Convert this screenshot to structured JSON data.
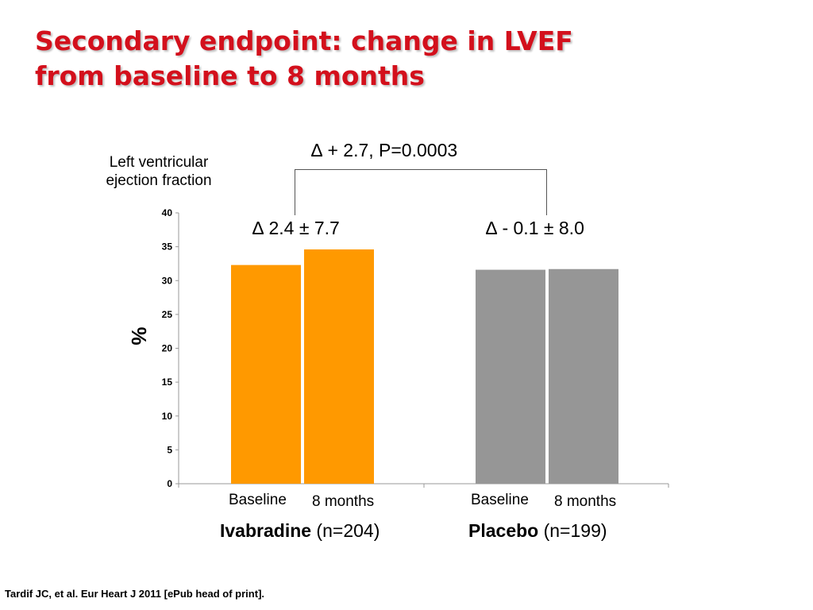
{
  "slide": {
    "title_line1": "Secondary endpoint: change in LVEF",
    "title_line2": "from baseline to 8 months",
    "footnote": "Tardif JC, et al. Eur Heart J  2011 [ePub head of print]."
  },
  "annotations": {
    "ylabel_line1": "Left ventricular",
    "ylabel_line2": "ejection fraction",
    "unit": "%",
    "delta_comparison": "∆ + 2.7,  P=0.0003",
    "delta_ivabradine": "∆ 2.4 ± 7.7",
    "delta_placebo": "∆ - 0.1 ± 8.0"
  },
  "groups": [
    {
      "name": "Ivabradine",
      "n": " (n=204)"
    },
    {
      "name": "Placebo",
      "n": " (n=199)"
    }
  ],
  "chart_data": {
    "type": "bar",
    "categories": [
      "Baseline",
      "8 months",
      "Baseline",
      "8 months"
    ],
    "group_of_category": [
      "Ivabradine",
      "Ivabradine",
      "Placebo",
      "Placebo"
    ],
    "values": [
      32.3,
      34.6,
      31.6,
      31.7
    ],
    "bar_colors": [
      "#ff9900",
      "#ff9900",
      "#969696",
      "#969696"
    ],
    "ylim": [
      0,
      40
    ],
    "yticks": [
      0,
      5,
      10,
      15,
      20,
      25,
      30,
      35,
      40
    ],
    "ylabel": "%",
    "grid": false
  }
}
